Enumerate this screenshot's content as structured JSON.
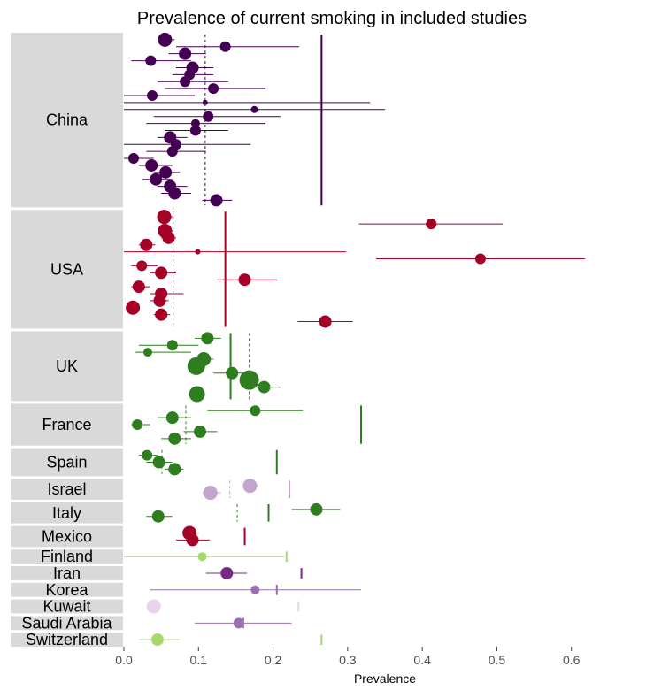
{
  "chart_data": {
    "type": "forest",
    "title": "Prevalence of current smoking in included studies",
    "xlabel": "Prevalence",
    "xlim": [
      0,
      0.7
    ],
    "xticks": [
      "0.0",
      "0.1",
      "0.2",
      "0.3",
      "0.4",
      "0.5",
      "0.6"
    ],
    "grid": false,
    "legend": "none",
    "groups": [
      {
        "name": "China",
        "color": "#440154",
        "pooled": 0.265,
        "median": 0.109,
        "studies": [
          {
            "est": 0.055,
            "lo": 0.045,
            "hi": 0.068,
            "size": 8
          },
          {
            "est": 0.136,
            "lo": 0.07,
            "hi": 0.235,
            "size": 6
          },
          {
            "est": 0.082,
            "lo": 0.06,
            "hi": 0.11,
            "size": 7
          },
          {
            "est": 0.036,
            "lo": 0.01,
            "hi": 0.09,
            "size": 6
          },
          {
            "est": 0.092,
            "lo": 0.07,
            "hi": 0.12,
            "size": 7
          },
          {
            "est": 0.088,
            "lo": 0.065,
            "hi": 0.12,
            "size": 6
          },
          {
            "est": 0.082,
            "lo": 0.045,
            "hi": 0.14,
            "size": 6
          },
          {
            "est": 0.12,
            "lo": 0.055,
            "hi": 0.19,
            "size": 6
          },
          {
            "est": 0.038,
            "lo": 0.0,
            "hi": 0.095,
            "size": 6
          },
          {
            "est": 0.109,
            "lo": 0.0,
            "hi": 0.33,
            "size": 3
          },
          {
            "est": 0.175,
            "lo": 0.0,
            "hi": 0.35,
            "size": 4
          },
          {
            "est": 0.113,
            "lo": 0.04,
            "hi": 0.21,
            "size": 6
          },
          {
            "est": 0.096,
            "lo": 0.03,
            "hi": 0.19,
            "size": 5
          },
          {
            "est": 0.096,
            "lo": 0.055,
            "hi": 0.14,
            "size": 6
          },
          {
            "est": 0.062,
            "lo": 0.045,
            "hi": 0.085,
            "size": 7
          },
          {
            "est": 0.07,
            "lo": 0.0,
            "hi": 0.17,
            "size": 6
          },
          {
            "est": 0.065,
            "lo": 0.03,
            "hi": 0.11,
            "size": 6
          },
          {
            "est": 0.013,
            "lo": 0.0,
            "hi": 0.04,
            "size": 6
          },
          {
            "est": 0.037,
            "lo": 0.02,
            "hi": 0.065,
            "size": 7
          },
          {
            "est": 0.056,
            "lo": 0.04,
            "hi": 0.075,
            "size": 7
          },
          {
            "est": 0.043,
            "lo": 0.025,
            "hi": 0.065,
            "size": 7
          },
          {
            "est": 0.062,
            "lo": 0.045,
            "hi": 0.085,
            "size": 7
          },
          {
            "est": 0.068,
            "lo": 0.05,
            "hi": 0.09,
            "size": 7
          },
          {
            "est": 0.124,
            "lo": 0.105,
            "hi": 0.145,
            "size": 7
          }
        ]
      },
      {
        "name": "USA",
        "color": "#a50026",
        "pooled": 0.136,
        "median": 0.066,
        "studies": [
          {
            "est": 0.054,
            "lo": 0.045,
            "hi": 0.065,
            "size": 8
          },
          {
            "est": 0.412,
            "lo": 0.315,
            "hi": 0.508,
            "size": 6
          },
          {
            "est": 0.055,
            "lo": 0.045,
            "hi": 0.066,
            "size": 8
          },
          {
            "est": 0.06,
            "lo": 0.05,
            "hi": 0.07,
            "size": 7
          },
          {
            "est": 0.03,
            "lo": 0.02,
            "hi": 0.042,
            "size": 7
          },
          {
            "est": 0.099,
            "lo": 0.0,
            "hi": 0.298,
            "size": 3
          },
          {
            "est": 0.478,
            "lo": 0.338,
            "hi": 0.618,
            "size": 6
          },
          {
            "est": 0.024,
            "lo": 0.01,
            "hi": 0.045,
            "size": 6
          },
          {
            "est": 0.05,
            "lo": 0.035,
            "hi": 0.07,
            "size": 7
          },
          {
            "est": 0.162,
            "lo": 0.125,
            "hi": 0.205,
            "size": 7
          },
          {
            "est": 0.02,
            "lo": 0.01,
            "hi": 0.035,
            "size": 7
          },
          {
            "est": 0.05,
            "lo": 0.035,
            "hi": 0.08,
            "size": 7
          },
          {
            "est": 0.048,
            "lo": 0.035,
            "hi": 0.06,
            "size": 7
          },
          {
            "est": 0.012,
            "lo": 0.005,
            "hi": 0.02,
            "size": 8
          },
          {
            "est": 0.05,
            "lo": 0.04,
            "hi": 0.062,
            "size": 7
          },
          {
            "est": 0.27,
            "lo": 0.233,
            "hi": 0.307,
            "size": 7
          }
        ]
      },
      {
        "name": "UK",
        "color": "#2e7d1e",
        "pooled": 0.143,
        "median": 0.168,
        "studies": [
          {
            "est": 0.112,
            "lo": 0.095,
            "hi": 0.13,
            "size": 7
          },
          {
            "est": 0.065,
            "lo": 0.02,
            "hi": 0.1,
            "size": 6
          },
          {
            "est": 0.032,
            "lo": 0.015,
            "hi": 0.09,
            "size": 5
          },
          {
            "est": 0.107,
            "lo": 0.095,
            "hi": 0.12,
            "size": 8
          },
          {
            "est": 0.097,
            "lo": 0.088,
            "hi": 0.107,
            "size": 10
          },
          {
            "est": 0.145,
            "lo": 0.12,
            "hi": 0.17,
            "size": 7
          },
          {
            "est": 0.168,
            "lo": 0.158,
            "hi": 0.18,
            "size": 11
          },
          {
            "est": 0.188,
            "lo": 0.165,
            "hi": 0.21,
            "size": 7
          },
          {
            "est": 0.098,
            "lo": 0.09,
            "hi": 0.106,
            "size": 9
          }
        ]
      },
      {
        "name": "France",
        "color": "#2e7d1e",
        "pooled": 0.318,
        "median": 0.083,
        "studies": [
          {
            "est": 0.176,
            "lo": 0.112,
            "hi": 0.24,
            "size": 6
          },
          {
            "est": 0.065,
            "lo": 0.045,
            "hi": 0.09,
            "size": 7
          },
          {
            "est": 0.018,
            "lo": 0.01,
            "hi": 0.035,
            "size": 6
          },
          {
            "est": 0.102,
            "lo": 0.08,
            "hi": 0.125,
            "size": 7
          },
          {
            "est": 0.068,
            "lo": 0.05,
            "hi": 0.09,
            "size": 7
          }
        ]
      },
      {
        "name": "Spain",
        "color": "#2e7d1e",
        "pooled": 0.205,
        "median": 0.051,
        "studies": [
          {
            "est": 0.031,
            "lo": 0.02,
            "hi": 0.045,
            "size": 6
          },
          {
            "est": 0.047,
            "lo": 0.03,
            "hi": 0.065,
            "size": 7
          },
          {
            "est": 0.068,
            "lo": 0.055,
            "hi": 0.08,
            "size": 7
          }
        ]
      },
      {
        "name": "Israel",
        "color": "#c2a5cf",
        "pooled": 0.222,
        "median": 0.142,
        "studies": [
          {
            "est": 0.169,
            "lo": 0.16,
            "hi": 0.18,
            "size": 8
          },
          {
            "est": 0.116,
            "lo": 0.105,
            "hi": 0.13,
            "size": 8
          }
        ]
      },
      {
        "name": "Italy",
        "color": "#2e7d1e",
        "pooled": 0.194,
        "median": 0.152,
        "studies": [
          {
            "est": 0.258,
            "lo": 0.225,
            "hi": 0.29,
            "size": 7
          },
          {
            "est": 0.046,
            "lo": 0.03,
            "hi": 0.065,
            "size": 7
          }
        ]
      },
      {
        "name": "Mexico",
        "color": "#a50026",
        "pooled": 0.162,
        "median": null,
        "studies": [
          {
            "est": 0.088,
            "lo": 0.08,
            "hi": 0.1,
            "size": 8
          },
          {
            "est": 0.092,
            "lo": 0.07,
            "hi": 0.115,
            "size": 7
          }
        ]
      },
      {
        "name": "Finland",
        "color": "#a6d96a",
        "pooled": 0.218,
        "median": null,
        "studies": [
          {
            "est": 0.105,
            "lo": 0.0,
            "hi": 0.215,
            "size": 5
          }
        ]
      },
      {
        "name": "Iran",
        "color": "#762a83",
        "pooled": 0.238,
        "median": null,
        "studies": [
          {
            "est": 0.138,
            "lo": 0.11,
            "hi": 0.165,
            "size": 7
          }
        ]
      },
      {
        "name": "Korea",
        "color": "#9970ab",
        "pooled": 0.205,
        "median": null,
        "studies": [
          {
            "est": 0.176,
            "lo": 0.035,
            "hi": 0.318,
            "size": 5
          }
        ]
      },
      {
        "name": "Kuwait",
        "color": "#e7d4e8",
        "pooled": 0.234,
        "median": null,
        "studies": [
          {
            "est": 0.04,
            "lo": 0.03,
            "hi": 0.05,
            "size": 8
          }
        ]
      },
      {
        "name": "Saudi Arabia",
        "color": "#9970ab",
        "pooled": 0.16,
        "median": null,
        "studies": [
          {
            "est": 0.154,
            "lo": 0.095,
            "hi": 0.225,
            "size": 6
          }
        ]
      },
      {
        "name": "Switzerland",
        "color": "#a6d96a",
        "pooled": 0.265,
        "median": null,
        "studies": [
          {
            "est": 0.045,
            "lo": 0.02,
            "hi": 0.075,
            "size": 7
          }
        ]
      }
    ]
  }
}
